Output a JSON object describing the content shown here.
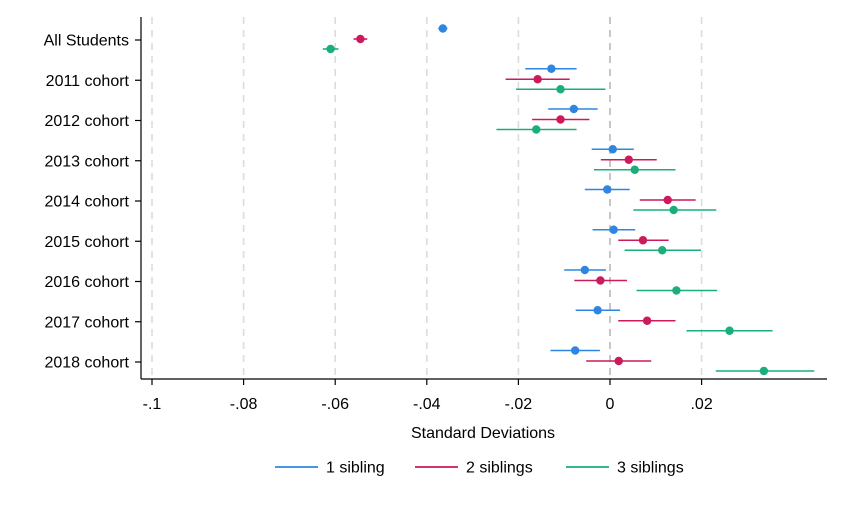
{
  "chart_data": {
    "type": "scatter",
    "subtype": "coefficient-plot-with-confidence-intervals",
    "title": "",
    "xlabel": "Standard Deviations",
    "ylabel": "",
    "xlim": [
      -0.102,
      0.047
    ],
    "xticks": [
      -0.1,
      -0.08,
      -0.06,
      -0.04,
      -0.02,
      0,
      0.02
    ],
    "xtick_labels": [
      "-.1",
      "-.08",
      "-.06",
      "-.04",
      "-.02",
      "0",
      ".02"
    ],
    "grid": "vertical dashed at x ticks",
    "reference_line": 0,
    "categories": [
      "All Students",
      "2011 cohort",
      "2012 cohort",
      "2013 cohort",
      "2014 cohort",
      "2015 cohort",
      "2016 cohort",
      "2017 cohort",
      "2018 cohort"
    ],
    "legend_position": "bottom",
    "series": [
      {
        "name": "1 sibling",
        "color": "#2e86e0",
        "values": [
          -0.0365,
          -0.0128,
          -0.0079,
          0.0006,
          -0.0006,
          0.0008,
          -0.0055,
          -0.0027,
          -0.0076
        ],
        "ci_low": [
          -0.0375,
          -0.0185,
          -0.0135,
          -0.004,
          -0.0055,
          -0.0038,
          -0.01,
          -0.0075,
          -0.013
        ],
        "ci_high": [
          -0.0355,
          -0.0073,
          -0.0027,
          0.0052,
          0.0043,
          0.0055,
          -0.0009,
          0.0022,
          -0.0022
        ]
      },
      {
        "name": "2 siblings",
        "color": "#cc1a5c",
        "values": [
          -0.0545,
          -0.0158,
          -0.0108,
          0.0041,
          0.0126,
          0.0072,
          -0.0021,
          0.0081,
          0.0019
        ],
        "ci_low": [
          -0.056,
          -0.0228,
          -0.017,
          -0.002,
          0.0065,
          0.0018,
          -0.0078,
          0.0018,
          -0.0052
        ],
        "ci_high": [
          -0.053,
          -0.0088,
          -0.0045,
          0.0102,
          0.0187,
          0.0128,
          0.0037,
          0.0143,
          0.009
        ]
      },
      {
        "name": "3 siblings",
        "color": "#1aaf7a",
        "values": [
          -0.061,
          -0.0108,
          -0.0161,
          0.0054,
          0.0139,
          0.0114,
          0.0145,
          0.0261,
          0.0336
        ],
        "ci_low": [
          -0.0627,
          -0.0205,
          -0.0248,
          -0.0035,
          0.0051,
          0.0032,
          0.0058,
          0.0167,
          0.0231
        ],
        "ci_high": [
          -0.0593,
          -0.001,
          -0.0073,
          0.0143,
          0.0232,
          0.0199,
          0.0234,
          0.0355,
          0.0446
        ]
      }
    ]
  }
}
